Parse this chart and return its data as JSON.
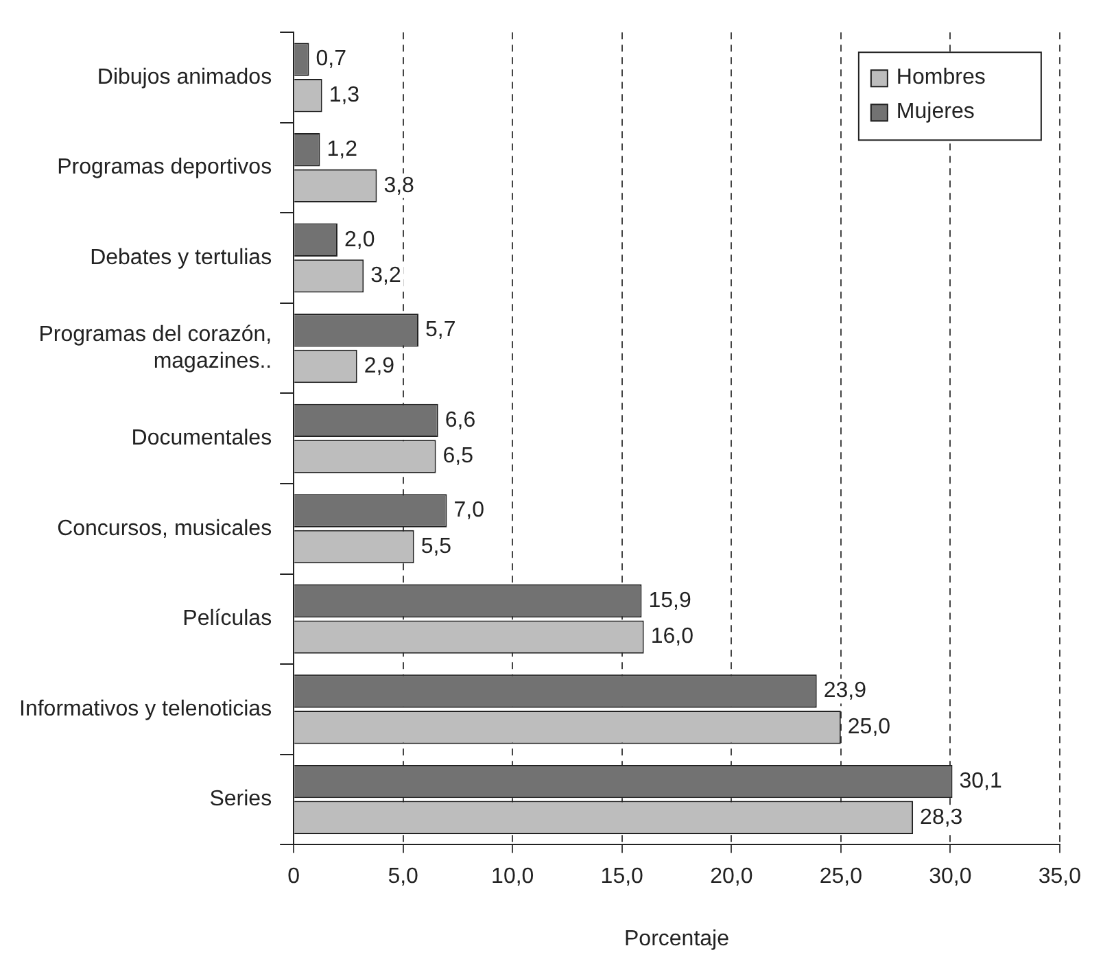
{
  "chart_data": {
    "type": "bar",
    "orientation": "horizontal",
    "xlabel": "Porcentaje",
    "categories": [
      "Dibujos animados",
      "Programas deportivos",
      "Debates y tertulias",
      "Programas del corazón, magazines..",
      "Documentales",
      "Concursos, musicales",
      "Películas",
      "Informativos y telenoticias",
      "Series"
    ],
    "series": [
      {
        "name": "Mujeres",
        "color": "#727272",
        "values": [
          0.7,
          1.2,
          2.0,
          5.7,
          6.6,
          7.0,
          15.9,
          23.9,
          30.1
        ],
        "value_labels": [
          "0,7",
          "1,2",
          "2,0",
          "5,7",
          "6,6",
          "7,0",
          "15,9",
          "23,9",
          "30,1"
        ]
      },
      {
        "name": "Hombres",
        "color": "#bdbdbd",
        "values": [
          1.3,
          3.8,
          3.2,
          2.9,
          6.5,
          5.5,
          16.0,
          25.0,
          28.3
        ],
        "value_labels": [
          "1,3",
          "3,8",
          "3,2",
          "2,9",
          "6,5",
          "5,5",
          "16,0",
          "25,0",
          "28,3"
        ]
      }
    ],
    "xlim": [
      0,
      35
    ],
    "xticks": [
      {
        "value": 0,
        "label": "0"
      },
      {
        "value": 5,
        "label": "5,0"
      },
      {
        "value": 10,
        "label": "10,0"
      },
      {
        "value": 15,
        "label": "15,0"
      },
      {
        "value": 20,
        "label": "20,0"
      },
      {
        "value": 25,
        "label": "25,0"
      },
      {
        "value": 30,
        "label": "30,0"
      },
      {
        "value": 35,
        "label": "35,0"
      }
    ],
    "grid": "x",
    "legend": "top right"
  }
}
